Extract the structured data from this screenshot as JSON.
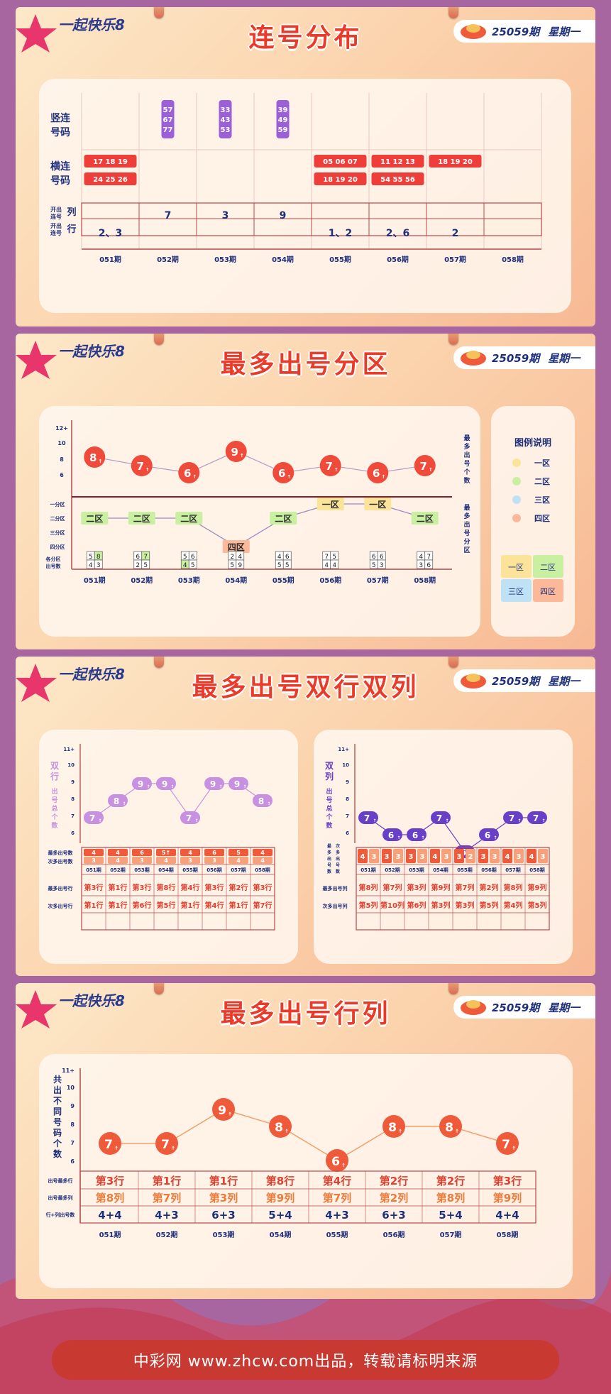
{
  "issue": {
    "number": "25059期",
    "weekday": "星期一"
  },
  "logo": {
    "text": "一起快乐8"
  },
  "periods": [
    "051期",
    "052期",
    "053期",
    "054期",
    "055期",
    "056期",
    "057期",
    "058期"
  ],
  "colors": {
    "red": "#ef3e3a",
    "purple": "#9b5fd8",
    "darkblue": "#1e2f7c",
    "green": "#c8f0a0",
    "yellow": "#fbe49a",
    "blue": "#bfe1f5",
    "orange": "#fbb99a"
  },
  "sections": [
    {
      "title": "连号分布"
    },
    {
      "title": "最多出号分区"
    },
    {
      "title": "最多出号双行双列"
    },
    {
      "title": "最多出号行列"
    }
  ],
  "consecutive": {
    "label_vertical": "竖连\n号码",
    "label_horizontal": "横连\n号码",
    "label_col": "开出\n连号",
    "label_col_suffix": "列",
    "label_row": "开出\n连号",
    "label_row_suffix": "行",
    "vertical": [
      [],
      [
        "57",
        "67",
        "77"
      ],
      [
        "33",
        "43",
        "53"
      ],
      [
        "39",
        "49",
        "59"
      ],
      [],
      [],
      [],
      []
    ],
    "horizontal": [
      [
        "17 18 19",
        "24 25 26"
      ],
      [],
      [],
      [],
      [
        "05 06 07",
        "18 19 20"
      ],
      [
        "11 12 13",
        "54 55 56"
      ],
      [
        "18 19 20"
      ],
      []
    ],
    "cols": [
      "",
      "7",
      "3",
      "9",
      "",
      "",
      "",
      ""
    ],
    "rows": [
      "2、3",
      "",
      "",
      "",
      "1、2",
      "2、6",
      "2",
      ""
    ]
  },
  "zone_chart": {
    "left_ticks": [
      "12+",
      "10",
      "8",
      "6"
    ],
    "right_label_top": "最多出号个数",
    "right_label_bottom": "最多出号分区",
    "zone_ticks": [
      "一分区",
      "二分区",
      "三分区",
      "四分区"
    ],
    "bottom_label": "各分区出号数",
    "legend_title": "图例说明",
    "legend": [
      "一区",
      "二区",
      "三区",
      "四区"
    ],
    "grid_labels": [
      "一区",
      "二区",
      "三区",
      "四区"
    ],
    "counts": [
      8,
      7,
      6,
      9,
      6,
      7,
      6,
      7
    ],
    "zones": [
      "二区",
      "二区",
      "二区",
      "四区",
      "二区",
      "一区",
      "一区",
      "二区"
    ],
    "zone_index": [
      2,
      2,
      2,
      4,
      2,
      1,
      1,
      2
    ],
    "cells": [
      [
        "5",
        "8",
        "4",
        "3"
      ],
      [
        "6",
        "7",
        "2",
        "5"
      ],
      [
        "5",
        "6",
        "4",
        "5"
      ],
      [
        "2",
        "4",
        "5",
        "9"
      ],
      [
        "4",
        "6",
        "5",
        "5"
      ],
      [
        "7",
        "5",
        "4",
        "4"
      ],
      [
        "6",
        "6",
        "5",
        "3"
      ],
      [
        "4",
        "7",
        "3",
        "6"
      ]
    ]
  },
  "double_chart": {
    "left": {
      "ylabel": "双行出号总个数",
      "ticks": [
        "11+",
        "10",
        "9",
        "8",
        "7",
        "6"
      ],
      "values": [
        7,
        8,
        9,
        9,
        7,
        9,
        9,
        8
      ],
      "max_label": "最多出号数",
      "sec_label": "次多出号数",
      "max_nums": [
        "4",
        "4",
        "6",
        "5",
        "4",
        "6",
        "5",
        "4"
      ],
      "sec_nums": [
        "3",
        "4",
        "3",
        "4",
        "3",
        "3",
        "4",
        "4"
      ],
      "max_row_label": "最多出号行",
      "sec_row_label": "次多出号行",
      "max_rows": [
        "3",
        "1",
        "3",
        "8",
        "4",
        "3",
        "2",
        "3"
      ],
      "sec_rows": [
        "1",
        "1",
        "6",
        "5",
        "1",
        "4",
        "1",
        "7"
      ],
      "unit": "行"
    },
    "right": {
      "ylabel": "双列出号总个数",
      "ticks": [
        "11+",
        "10",
        "9",
        "8",
        "7",
        "6"
      ],
      "values": [
        7,
        6,
        6,
        7,
        5,
        6,
        7,
        7
      ],
      "max_label": "最多出号数",
      "sec_label": "次多出号数",
      "pairs": [
        [
          "4",
          "3"
        ],
        [
          "3",
          "3"
        ],
        [
          "3",
          "3"
        ],
        [
          "4",
          "3"
        ],
        [
          "3",
          "2"
        ],
        [
          "3",
          "3"
        ],
        [
          "4",
          "3"
        ],
        [
          "4",
          "3"
        ]
      ],
      "max_row_label": "最多出号列",
      "sec_row_label": "次多出号列",
      "max_cols": [
        "8",
        "7",
        "3",
        "9",
        "7",
        "2",
        "8",
        "9"
      ],
      "sec_cols": [
        "5",
        "10",
        "6",
        "3",
        "3",
        "5",
        "4",
        "5"
      ],
      "unit": "列"
    }
  },
  "rowcol_chart": {
    "ylabel": "共出不同号码个数",
    "ticks": [
      "11+",
      "10",
      "9",
      "8",
      "7",
      "6"
    ],
    "values": [
      7,
      7,
      9,
      8,
      6,
      8,
      8,
      7
    ],
    "row_label": "出号最多行",
    "col_label": "出号最多列",
    "sum_label": "行+列出号数",
    "rows": [
      "3",
      "1",
      "1",
      "8",
      "4",
      "2",
      "2",
      "3"
    ],
    "cols": [
      "8",
      "7",
      "3",
      "9",
      "7",
      "2",
      "8",
      "9"
    ],
    "sums": [
      "4+4",
      "4+3",
      "6+3",
      "5+4",
      "4+3",
      "6+3",
      "5+4",
      "4+4"
    ],
    "prefix": "第",
    "row_unit": "行",
    "col_unit": "列"
  },
  "footer": "中彩网 www.zhcw.com出品，转载请标明来源"
}
